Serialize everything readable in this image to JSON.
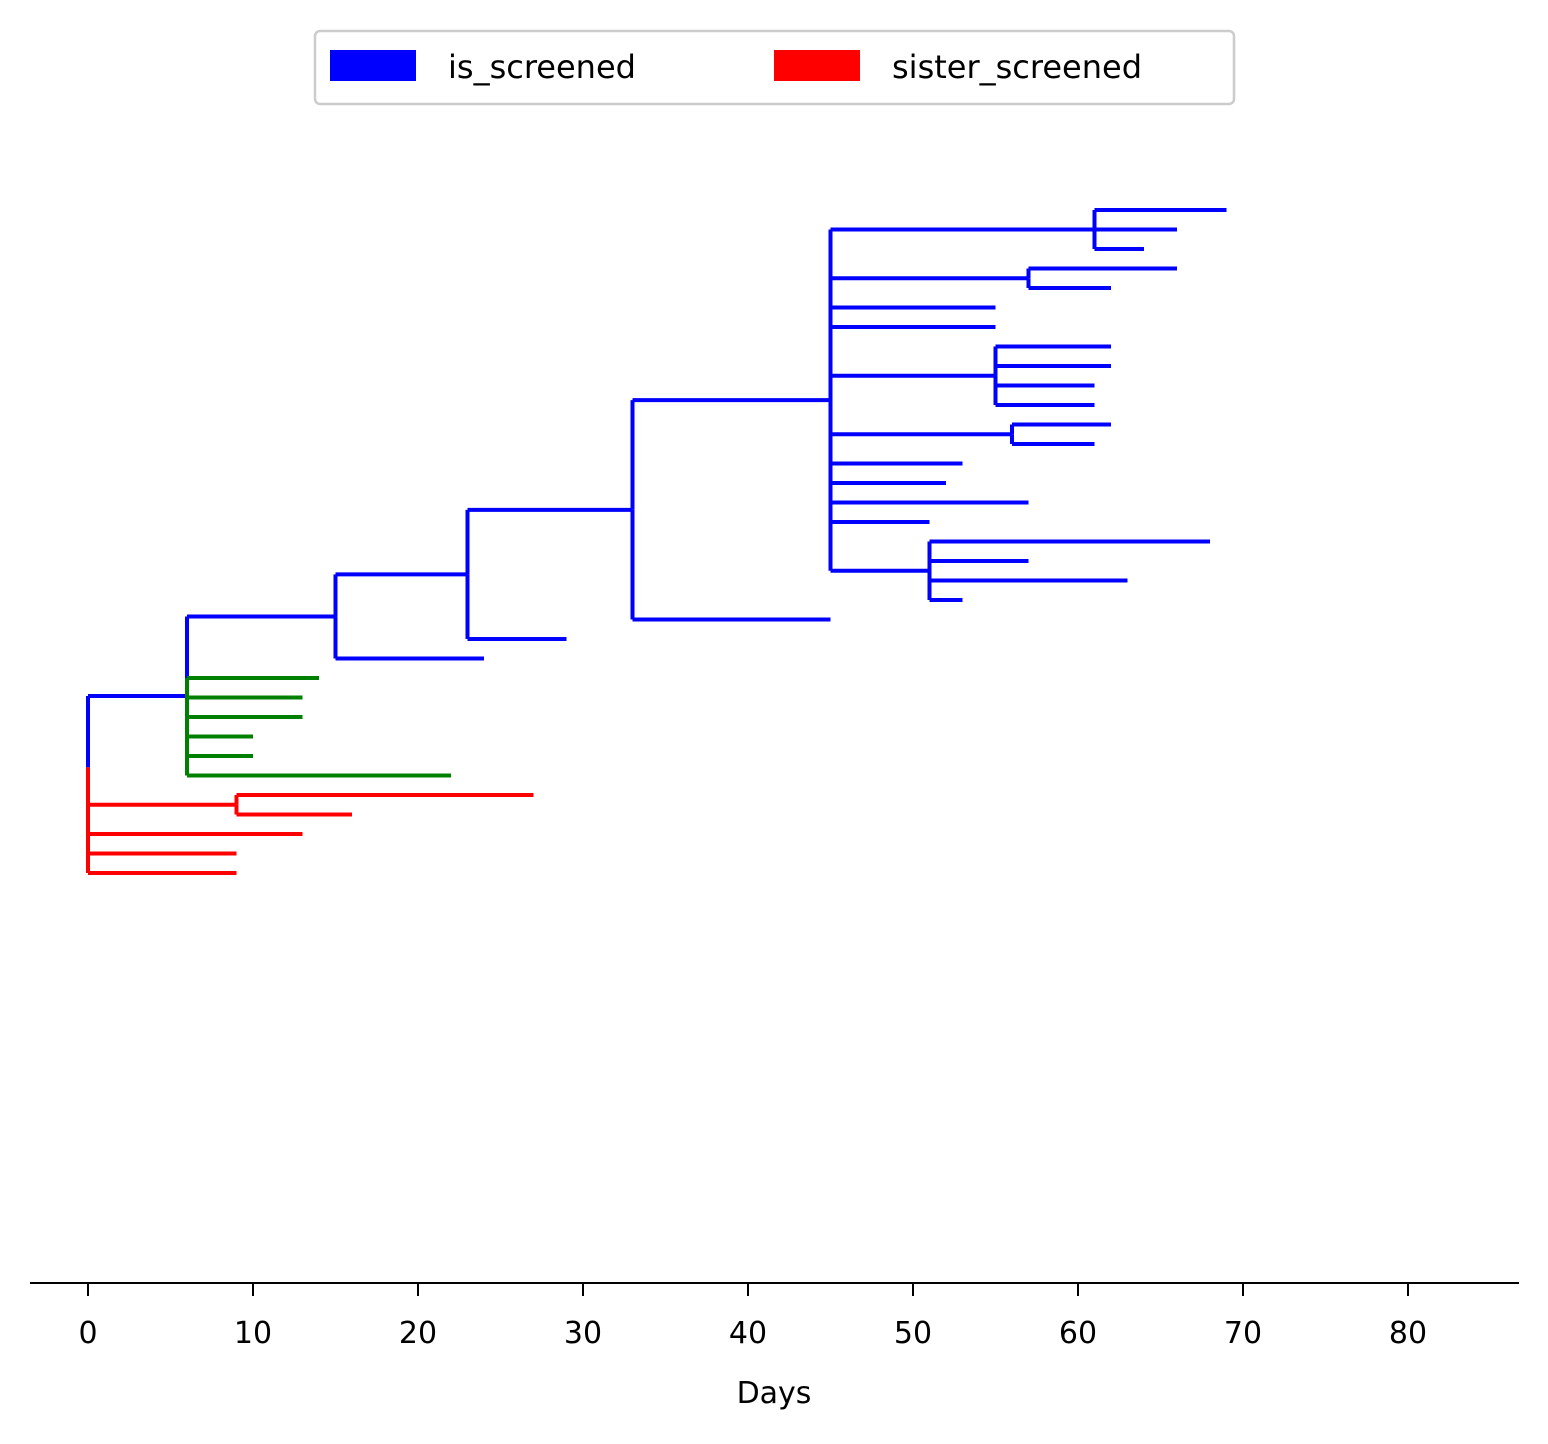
{
  "chart_data": {
    "type": "tree",
    "xlabel": "Days",
    "xlim": [
      -3.5,
      86.2
    ],
    "x_ticks": [
      0,
      10,
      20,
      30,
      40,
      50,
      60,
      70,
      80
    ],
    "legend": {
      "placement": "top-center",
      "entries": [
        {
          "name": "is_screened",
          "color": "#0000ff"
        },
        {
          "name": "sister_screened",
          "color": "#ff0000"
        }
      ]
    },
    "colors": {
      "is_screened": "#0000ff",
      "sister_screened": "#ff0000",
      "other": "#008000",
      "root": "#000000"
    },
    "tree": {
      "x": 0,
      "color": "root",
      "children": [
        {
          "x": 6,
          "color": "is_screened",
          "children": [
            {
              "x": 9,
              "color": "is_screened",
              "children": [
                {
                  "x": 15,
                  "color": "is_screened",
                  "children": [
                    {
                      "x": 23,
                      "color": "is_screened",
                      "children": [
                        {
                          "x": 33,
                          "color": "is_screened",
                          "children": [
                            {
                              "x": 45,
                              "color": "is_screened",
                              "children": [
                                {
                                  "x": 57,
                                  "color": "is_screened",
                                  "children": [
                                    {
                                      "x": 61,
                                      "color": "is_screened",
                                      "children": [
                                        {
                                          "x": 69,
                                          "color": "is_screened"
                                        },
                                        {
                                          "x": 66,
                                          "color": "is_screened"
                                        },
                                        {
                                          "x": 64,
                                          "color": "is_screened"
                                        }
                                      ]
                                    }
                                  ]
                                },
                                {
                                  "x": 57,
                                  "color": "is_screened",
                                  "children": [
                                    {
                                      "x": 66,
                                      "color": "is_screened"
                                    },
                                    {
                                      "x": 62,
                                      "color": "is_screened"
                                    }
                                  ]
                                },
                                {
                                  "x": 55,
                                  "color": "is_screened"
                                },
                                {
                                  "x": 55,
                                  "color": "is_screened"
                                },
                                {
                                  "x": 55,
                                  "color": "is_screened",
                                  "children": [
                                    {
                                      "x": 62,
                                      "color": "is_screened"
                                    },
                                    {
                                      "x": 62,
                                      "color": "is_screened"
                                    },
                                    {
                                      "x": 61,
                                      "color": "is_screened"
                                    },
                                    {
                                      "x": 61,
                                      "color": "is_screened"
                                    }
                                  ]
                                },
                                {
                                  "x": 53,
                                  "color": "is_screened",
                                  "children": [
                                    {
                                      "x": 56,
                                      "color": "is_screened",
                                      "children": [
                                        {
                                          "x": 62,
                                          "color": "is_screened"
                                        },
                                        {
                                          "x": 61,
                                          "color": "is_screened"
                                        }
                                      ]
                                    }
                                  ]
                                },
                                {
                                  "x": 53,
                                  "color": "is_screened"
                                },
                                {
                                  "x": 52,
                                  "color": "is_screened"
                                },
                                {
                                  "x": 52,
                                  "color": "is_screened",
                                  "children": [
                                    {
                                      "x": 57,
                                      "color": "is_screened"
                                    }
                                  ]
                                },
                                {
                                  "x": 51,
                                  "color": "is_screened"
                                },
                                {
                                  "x": 51,
                                  "color": "is_screened",
                                  "children": [
                                    {
                                      "x": 59,
                                      "color": "is_screened",
                                      "children": [
                                        {
                                          "x": 68,
                                          "color": "is_screened"
                                        }
                                      ]
                                    },
                                    {
                                      "x": 57,
                                      "color": "is_screened"
                                    },
                                    {
                                      "x": 55,
                                      "color": "is_screened",
                                      "children": [
                                        {
                                          "x": 63,
                                          "color": "is_screened"
                                        }
                                      ]
                                    },
                                    {
                                      "x": 53,
                                      "color": "is_screened"
                                    }
                                  ]
                                }
                              ]
                            },
                            {
                              "x": 45,
                              "color": "is_screened"
                            }
                          ]
                        },
                        {
                          "x": 29,
                          "color": "is_screened"
                        }
                      ]
                    },
                    {
                      "x": 24,
                      "color": "is_screened"
                    }
                  ]
                }
              ]
            },
            {
              "x": 14,
              "color": "other"
            },
            {
              "x": 13,
              "color": "other"
            },
            {
              "x": 13,
              "color": "other"
            },
            {
              "x": 10,
              "color": "other"
            },
            {
              "x": 10,
              "color": "other"
            },
            {
              "x": 9,
              "color": "other",
              "children": [
                {
                  "x": 22,
                  "color": "other"
                }
              ]
            }
          ]
        },
        {
          "x": 0,
          "color": "sister_screened",
          "children": [
            {
              "x": 9,
              "color": "sister_screened",
              "children": [
                {
                  "x": 14,
                  "color": "sister_screened",
                  "children": [
                    {
                      "x": 20,
                      "color": "sister_screened",
                      "children": [
                        {
                          "x": 27,
                          "color": "sister_screened"
                        }
                      ]
                    }
                  ]
                },
                {
                  "x": 16,
                  "color": "sister_screened"
                }
              ]
            },
            {
              "x": 9,
              "color": "sister_screened",
              "children": [
                {
                  "x": 13,
                  "color": "sister_screened"
                }
              ]
            },
            {
              "x": 9,
              "color": "sister_screened"
            },
            {
              "x": 9,
              "color": "sister_screened"
            }
          ]
        }
      ]
    }
  }
}
